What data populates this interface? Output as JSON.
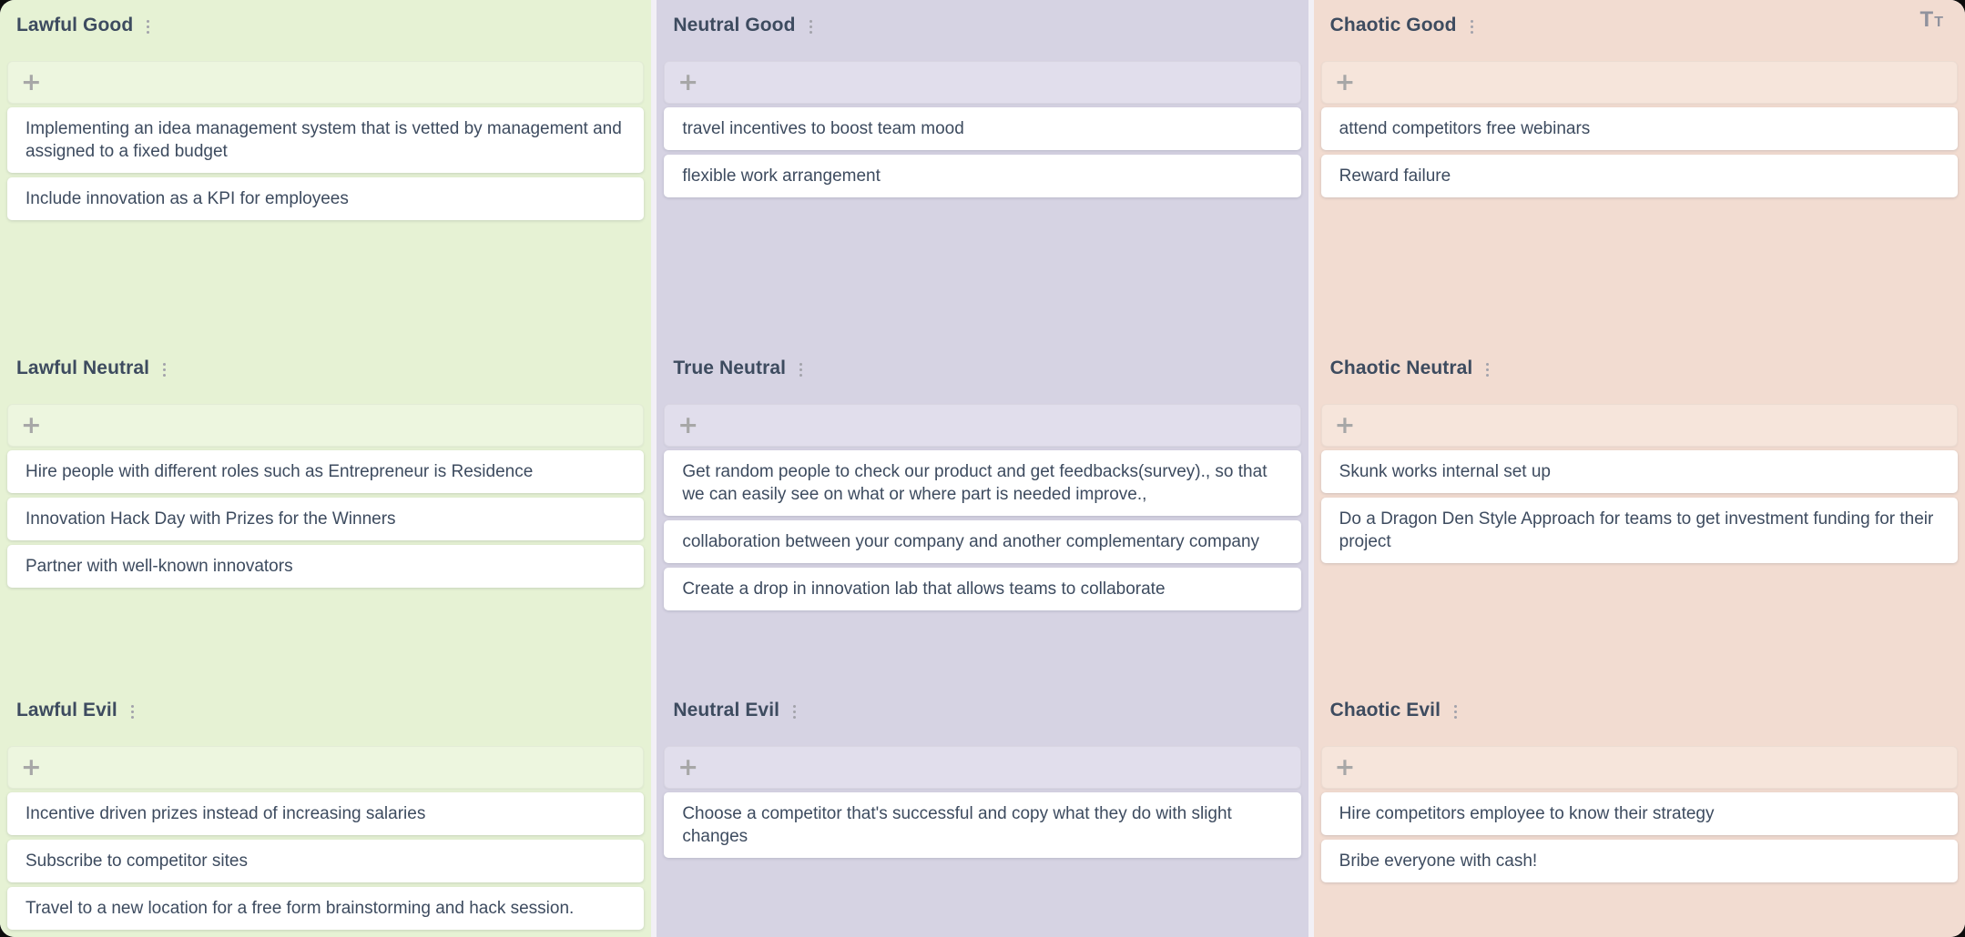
{
  "board": {
    "add_card_label": "+",
    "toolbar": {
      "text_size_icon": {
        "glyph_large": "T",
        "glyph_small": "T"
      }
    },
    "icons": {
      "column_menu": "kebab-vertical-dots",
      "add_card": "plus",
      "text_size": "large-small-T"
    },
    "colors": {
      "gap_bg": "#f2f0f6",
      "text_color": "#3d4b5f",
      "muted_icon_color": "#a2a2aa",
      "card_bg": "#ffffff"
    },
    "columns": [
      {
        "tone": "lawful",
        "colors": {
          "column_bg": "#e6f2d4",
          "add_bar_bg": "#edf6df"
        },
        "sections": [
          {
            "title": "Lawful Good",
            "cards": [
              "Implementing an idea management system that is vetted by management and assigned to a fixed budget",
              "Include innovation as a KPI for employees"
            ]
          },
          {
            "title": "Lawful Neutral",
            "cards": [
              "Hire people with different roles such as Entrepreneur is Residence",
              "Innovation Hack Day with Prizes for the Winners",
              "Partner with well-known innovators"
            ]
          },
          {
            "title": "Lawful Evil",
            "cards": [
              "Incentive driven prizes instead of increasing salaries",
              "Subscribe to competitor sites",
              "Travel to a new location for a free form brainstorming and hack session."
            ]
          }
        ]
      },
      {
        "tone": "neutral",
        "colors": {
          "column_bg": "#d6d3e3",
          "add_bar_bg": "#e1deec"
        },
        "sections": [
          {
            "title": "Neutral Good",
            "cards": [
              "travel incentives to boost team mood",
              "flexible work arrangement"
            ]
          },
          {
            "title": "True Neutral",
            "cards": [
              "Get random people to check our product and get feedbacks(survey)., so that we can easily see on what or where part is needed improve.,",
              "collaboration between your company and another complementary company",
              "Create a drop in innovation lab that allows teams to collaborate"
            ]
          },
          {
            "title": "Neutral Evil",
            "cards": [
              "Choose a competitor that's successful and copy what they do with slight changes"
            ]
          }
        ]
      },
      {
        "tone": "chaotic",
        "colors": {
          "column_bg": "#f2dcd1",
          "add_bar_bg": "#f6e5db"
        },
        "sections": [
          {
            "title": "Chaotic Good",
            "cards": [
              "attend competitors free webinars",
              "Reward failure"
            ]
          },
          {
            "title": "Chaotic Neutral",
            "cards": [
              "Skunk works internal set up",
              "Do a Dragon Den Style Approach for teams to get investment funding for their project"
            ]
          },
          {
            "title": "Chaotic Evil",
            "cards": [
              "Hire competitors employee to know their strategy",
              "Bribe everyone with cash!"
            ]
          }
        ]
      }
    ]
  }
}
